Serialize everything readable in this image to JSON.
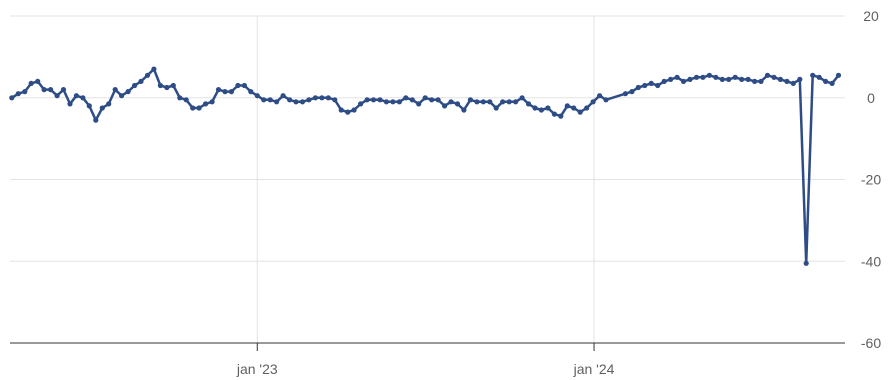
{
  "chart_data": {
    "type": "line",
    "title": "",
    "xlabel": "",
    "ylabel": "",
    "x_axis": {
      "type": "datetime",
      "range": [
        "2022-04-08",
        "2024-09-29"
      ],
      "ticks": [
        {
          "date": "2023-01-01",
          "label": "jan '23"
        },
        {
          "date": "2024-01-01",
          "label": "jan '24"
        }
      ]
    },
    "y_axis": {
      "position": "right",
      "ylim": [
        -60,
        20
      ],
      "ticks": [
        20,
        0,
        -20,
        -40,
        -60
      ]
    },
    "grid": true,
    "legend": "none",
    "colors": {
      "series": "#2e4c86",
      "grid": "#e3e3e3",
      "axis": "#333333",
      "tick_text": "#606060"
    },
    "series": [
      {
        "points": [
          [
            "2022-04-10",
            0
          ],
          [
            "2022-04-17",
            1
          ],
          [
            "2022-04-24",
            1.5
          ],
          [
            "2022-05-01",
            3.5
          ],
          [
            "2022-05-08",
            4
          ],
          [
            "2022-05-15",
            2
          ],
          [
            "2022-05-22",
            2
          ],
          [
            "2022-05-29",
            0.5
          ],
          [
            "2022-06-05",
            2
          ],
          [
            "2022-06-12",
            -1.5
          ],
          [
            "2022-06-19",
            0.5
          ],
          [
            "2022-06-26",
            0
          ],
          [
            "2022-07-03",
            -2
          ],
          [
            "2022-07-10",
            -5.5
          ],
          [
            "2022-07-17",
            -2.5
          ],
          [
            "2022-07-24",
            -1.5
          ],
          [
            "2022-07-31",
            2
          ],
          [
            "2022-08-07",
            0.5
          ],
          [
            "2022-08-14",
            1.5
          ],
          [
            "2022-08-21",
            3
          ],
          [
            "2022-08-28",
            4
          ],
          [
            "2022-09-04",
            5.5
          ],
          [
            "2022-09-11",
            7
          ],
          [
            "2022-09-18",
            3
          ],
          [
            "2022-09-25",
            2.5
          ],
          [
            "2022-10-02",
            3
          ],
          [
            "2022-10-09",
            0
          ],
          [
            "2022-10-16",
            -0.5
          ],
          [
            "2022-10-23",
            -2.5
          ],
          [
            "2022-10-30",
            -2.5
          ],
          [
            "2022-11-06",
            -1.5
          ],
          [
            "2022-11-13",
            -1
          ],
          [
            "2022-11-20",
            2
          ],
          [
            "2022-11-27",
            1.5
          ],
          [
            "2022-12-04",
            1.5
          ],
          [
            "2022-12-11",
            3
          ],
          [
            "2022-12-18",
            3
          ],
          [
            "2022-12-25",
            1.5
          ],
          [
            "2023-01-01",
            0.5
          ],
          [
            "2023-01-08",
            -0.5
          ],
          [
            "2023-01-15",
            -0.5
          ],
          [
            "2023-01-22",
            -1
          ],
          [
            "2023-01-29",
            0.5
          ],
          [
            "2023-02-05",
            -0.5
          ],
          [
            "2023-02-12",
            -1
          ],
          [
            "2023-02-19",
            -1
          ],
          [
            "2023-02-26",
            -0.5
          ],
          [
            "2023-03-05",
            0
          ],
          [
            "2023-03-12",
            0
          ],
          [
            "2023-03-19",
            0
          ],
          [
            "2023-03-26",
            -0.5
          ],
          [
            "2023-04-02",
            -3
          ],
          [
            "2023-04-09",
            -3.5
          ],
          [
            "2023-04-16",
            -3
          ],
          [
            "2023-04-23",
            -1.5
          ],
          [
            "2023-04-30",
            -0.5
          ],
          [
            "2023-05-07",
            -0.5
          ],
          [
            "2023-05-14",
            -0.5
          ],
          [
            "2023-05-21",
            -1
          ],
          [
            "2023-05-28",
            -1
          ],
          [
            "2023-06-04",
            -1
          ],
          [
            "2023-06-11",
            0
          ],
          [
            "2023-06-18",
            -0.5
          ],
          [
            "2023-06-25",
            -1.5
          ],
          [
            "2023-07-02",
            0
          ],
          [
            "2023-07-09",
            -0.5
          ],
          [
            "2023-07-16",
            -0.5
          ],
          [
            "2023-07-23",
            -2
          ],
          [
            "2023-07-30",
            -1
          ],
          [
            "2023-08-06",
            -1.5
          ],
          [
            "2023-08-13",
            -3
          ],
          [
            "2023-08-20",
            -0.5
          ],
          [
            "2023-08-27",
            -1
          ],
          [
            "2023-09-03",
            -1
          ],
          [
            "2023-09-10",
            -1
          ],
          [
            "2023-09-17",
            -2.5
          ],
          [
            "2023-09-24",
            -1
          ],
          [
            "2023-10-01",
            -1
          ],
          [
            "2023-10-08",
            -1
          ],
          [
            "2023-10-15",
            0
          ],
          [
            "2023-10-22",
            -1.5
          ],
          [
            "2023-10-29",
            -2.5
          ],
          [
            "2023-11-05",
            -3
          ],
          [
            "2023-11-12",
            -2.5
          ],
          [
            "2023-11-19",
            -4
          ],
          [
            "2023-11-26",
            -4.5
          ],
          [
            "2023-12-03",
            -2
          ],
          [
            "2023-12-10",
            -2.5
          ],
          [
            "2023-12-17",
            -3.5
          ],
          [
            "2023-12-24",
            -2.5
          ],
          [
            "2023-12-31",
            -1
          ],
          [
            "2024-01-07",
            0.5
          ],
          [
            "2024-01-14",
            -0.5
          ],
          [
            "2024-02-04",
            1
          ],
          [
            "2024-02-11",
            1.5
          ],
          [
            "2024-02-18",
            2.5
          ],
          [
            "2024-02-25",
            3
          ],
          [
            "2024-03-03",
            3.5
          ],
          [
            "2024-03-10",
            3
          ],
          [
            "2024-03-17",
            4
          ],
          [
            "2024-03-24",
            4.5
          ],
          [
            "2024-03-31",
            5
          ],
          [
            "2024-04-07",
            4
          ],
          [
            "2024-04-14",
            4.5
          ],
          [
            "2024-04-21",
            5
          ],
          [
            "2024-04-28",
            5
          ],
          [
            "2024-05-05",
            5.5
          ],
          [
            "2024-05-12",
            5
          ],
          [
            "2024-05-19",
            4.5
          ],
          [
            "2024-05-26",
            4.5
          ],
          [
            "2024-06-02",
            5
          ],
          [
            "2024-06-09",
            4.5
          ],
          [
            "2024-06-16",
            4.5
          ],
          [
            "2024-06-23",
            4
          ],
          [
            "2024-06-30",
            4
          ],
          [
            "2024-07-07",
            5.5
          ],
          [
            "2024-07-14",
            5
          ],
          [
            "2024-07-21",
            4.5
          ],
          [
            "2024-07-28",
            4
          ],
          [
            "2024-08-04",
            3.5
          ],
          [
            "2024-08-11",
            4.5
          ],
          [
            "2024-08-18",
            -40.5
          ],
          [
            "2024-08-25",
            5.5
          ],
          [
            "2024-09-01",
            5
          ],
          [
            "2024-09-08",
            4
          ],
          [
            "2024-09-15",
            3.5
          ],
          [
            "2024-09-22",
            5.5
          ]
        ]
      }
    ]
  }
}
